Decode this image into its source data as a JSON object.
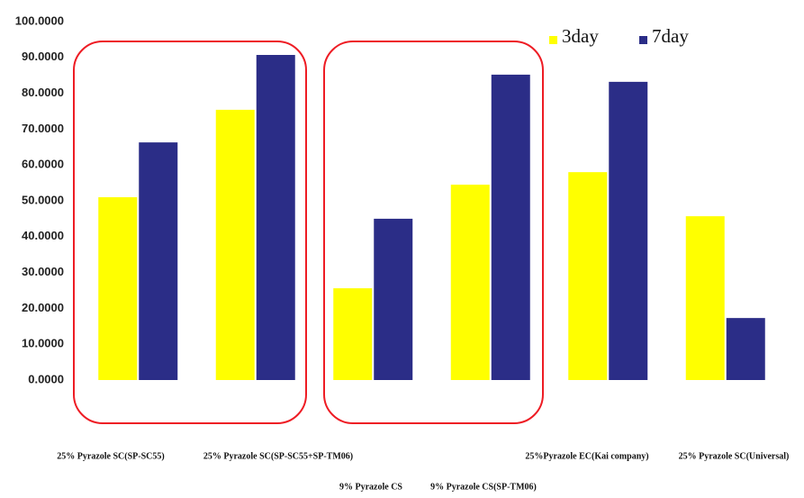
{
  "chart_data": {
    "type": "bar",
    "categories": [
      "25% Pyrazole SC(SP-SC55)",
      "25% Pyrazole SC(SP-SC55+SP-TM06)",
      "9% Pyrazole CS",
      "9% Pyrazole CS(SP-TM06)",
      "25%Pyrazole EC(Kai company)",
      "25% Pyrazole SC(Universal)"
    ],
    "series": [
      {
        "name": "3day",
        "color": "#ffff00",
        "values": [
          51.0,
          75.4,
          25.6,
          54.5,
          58.0,
          45.7
        ]
      },
      {
        "name": "7day",
        "color": "#2b2d87",
        "values": [
          66.3,
          90.7,
          45.0,
          85.2,
          83.2,
          17.3
        ]
      }
    ],
    "ylim": [
      0,
      100
    ],
    "yticks": [
      {
        "value": 0,
        "label": "0.0000"
      },
      {
        "value": 10,
        "label": "10.0000"
      },
      {
        "value": 20,
        "label": "20.0000"
      },
      {
        "value": 30,
        "label": "30.0000"
      },
      {
        "value": 40,
        "label": "40.0000"
      },
      {
        "value": 50,
        "label": "50.0000"
      },
      {
        "value": 60,
        "label": "60.0000"
      },
      {
        "value": 70,
        "label": "70.0000"
      },
      {
        "value": 80,
        "label": "80.0000"
      },
      {
        "value": 90,
        "label": "90.0000"
      },
      {
        "value": 100,
        "label": "100.0000"
      }
    ],
    "grid": false,
    "legend": "top-right"
  }
}
